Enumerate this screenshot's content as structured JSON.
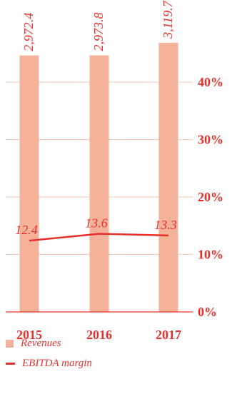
{
  "chart_data": {
    "type": "bar",
    "categories": [
      "2015",
      "2016",
      "2017"
    ],
    "series": [
      {
        "name": "Revenues",
        "type": "bar",
        "values": [
          2972.4,
          2973.8,
          3119.7
        ],
        "labels": [
          "2,972.4",
          "2,973.8",
          "3,119.7"
        ]
      },
      {
        "name": "EBITDA margin",
        "type": "line",
        "axis": "right",
        "values": [
          12.4,
          13.6,
          13.3
        ],
        "labels": [
          "12.4",
          "13.6",
          "13.3"
        ]
      }
    ],
    "y2": {
      "ticks": [
        0,
        10,
        20,
        30,
        40
      ],
      "tick_labels": [
        "0%",
        "10%",
        "20%",
        "30%",
        "40%"
      ],
      "range": [
        0,
        40
      ]
    },
    "grid": true,
    "legend_position": "bottom-left",
    "colors": {
      "bar": "#f4b29a",
      "line": "#e8302a",
      "text": "#e8302a",
      "grid": "#f5c6b6",
      "axis": "#e8302a"
    }
  }
}
